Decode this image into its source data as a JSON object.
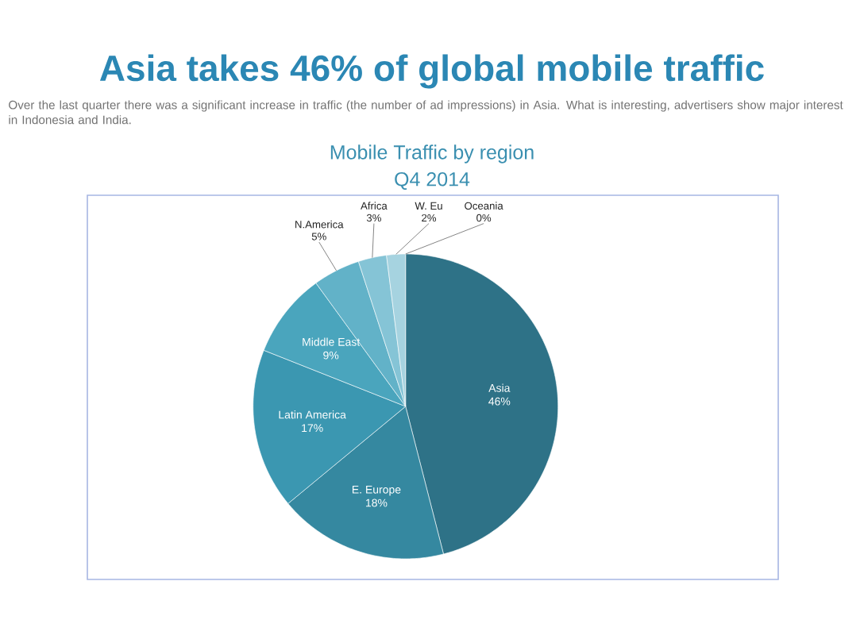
{
  "chart_data": {
    "type": "pie",
    "title": "Asia takes 46% of global mobile traffic",
    "subtitle": "Over the last quarter there was a significant increase in traffic (the number of ad impressions) in Asia. What is interesting, advertisers show major interest in Indonesia and India.",
    "annotations": [
      "Mobile Traffic by region",
      "Q4 2014"
    ],
    "categories": [
      "Asia",
      "E. Europe",
      "Latin America",
      "Middle East",
      "N.America",
      "Africa",
      "W. Eu",
      "Oceania"
    ],
    "values": [
      46,
      18,
      17,
      9,
      5,
      3,
      2,
      0
    ],
    "value_labels": [
      "46%",
      "18%",
      "17%",
      "9%",
      "5%",
      "3%",
      "2%",
      "0%"
    ],
    "colors": [
      "#2e7287",
      "#3588a0",
      "#3b97b1",
      "#4aa5bd",
      "#62b2c8",
      "#85c4d6",
      "#a6d3e0",
      "#c5e2ea"
    ]
  }
}
